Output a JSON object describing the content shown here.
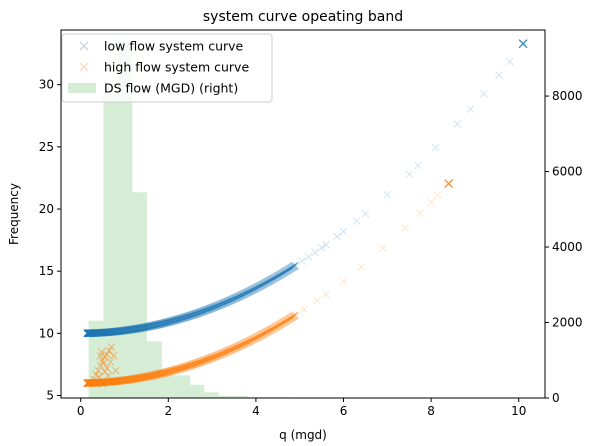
{
  "chart_data": {
    "type": "scatter",
    "title": "system curve opeating band",
    "xlabel": "q (mgd)",
    "ylabel": "Frequency",
    "xlim": [
      -0.45,
      10.6
    ],
    "ylim": [
      4.8,
      34.4
    ],
    "y2lim": [
      0,
      9750
    ],
    "xticks": [
      0,
      2,
      4,
      6,
      8,
      10
    ],
    "yticks": [
      5,
      10,
      15,
      20,
      25,
      30
    ],
    "y2ticks": [
      0,
      2000,
      4000,
      6000,
      8000
    ],
    "grid": false,
    "legend_position": "top-left",
    "legend": [
      {
        "label": "low flow system curve",
        "kind": "marker",
        "color": "#1f77b4"
      },
      {
        "label": "high flow system curve",
        "kind": "marker",
        "color": "#ff7f0e"
      },
      {
        "label": "DS flow (MGD) (right)",
        "kind": "patch",
        "color": "#2ca02c"
      }
    ],
    "series": [
      {
        "name": "low flow system curve",
        "marker": "x",
        "color": "#1f77b4",
        "alpha": 0.2,
        "curve": {
          "intercept": 10,
          "coef": 0.2276,
          "power": 2
        },
        "dense_x_range": [
          0.15,
          4.9
        ],
        "dense_count": 900,
        "x": [
          5.05,
          5.2,
          5.35,
          5.5,
          5.6,
          5.85,
          6.0,
          6.3,
          6.5,
          7.0,
          7.5,
          7.7,
          8.1,
          8.6,
          8.9,
          9.2,
          9.55,
          9.8
        ],
        "highlight": {
          "x": 10.1,
          "y": 33.3
        }
      },
      {
        "name": "high flow system curve",
        "marker": "x",
        "color": "#ff7f0e",
        "alpha": 0.2,
        "curve": {
          "intercept": 6,
          "coef": 0.2276,
          "power": 2
        },
        "dense_x_range": [
          0.15,
          4.9
        ],
        "dense_count": 900,
        "x": [
          5.1,
          5.4,
          5.6,
          6.0,
          6.4,
          6.9,
          7.4,
          7.75,
          8.0,
          8.15
        ],
        "cluster": [
          [
            0.35,
            6.7
          ],
          [
            0.4,
            7.0
          ],
          [
            0.45,
            7.4
          ],
          [
            0.5,
            7.8
          ],
          [
            0.55,
            8.1
          ],
          [
            0.6,
            8.3
          ],
          [
            0.65,
            8.6
          ],
          [
            0.7,
            8.9
          ],
          [
            0.45,
            8.2
          ],
          [
            0.52,
            7.6
          ],
          [
            0.6,
            7.2
          ],
          [
            0.55,
            6.9
          ],
          [
            0.42,
            6.5
          ],
          [
            0.68,
            7.7
          ],
          [
            0.75,
            8.2
          ],
          [
            0.3,
            6.3
          ],
          [
            0.63,
            6.6
          ],
          [
            0.5,
            5.9
          ],
          [
            0.8,
            7.0
          ],
          [
            0.48,
            8.5
          ]
        ],
        "highlight": {
          "x": 8.4,
          "y": 22.05
        }
      }
    ],
    "histogram": {
      "name": "DS flow (MGD) (right)",
      "color": "#2ca02c",
      "alpha": 0.2,
      "axis": "right",
      "bins": [
        {
          "x0": 0.18,
          "x1": 0.52,
          "value": 2050
        },
        {
          "x0": 0.52,
          "x1": 0.85,
          "value": 8050
        },
        {
          "x0": 0.85,
          "x1": 1.18,
          "value": 9450
        },
        {
          "x0": 1.18,
          "x1": 1.51,
          "value": 5450
        },
        {
          "x0": 1.51,
          "x1": 1.85,
          "value": 1500
        },
        {
          "x0": 1.85,
          "x1": 2.5,
          "value": 600
        },
        {
          "x0": 2.5,
          "x1": 2.82,
          "value": 350
        },
        {
          "x0": 2.82,
          "x1": 3.15,
          "value": 150
        },
        {
          "x0": 3.15,
          "x1": 3.82,
          "value": 60
        },
        {
          "x0": 3.82,
          "x1": 4.8,
          "value": 20
        }
      ]
    }
  }
}
